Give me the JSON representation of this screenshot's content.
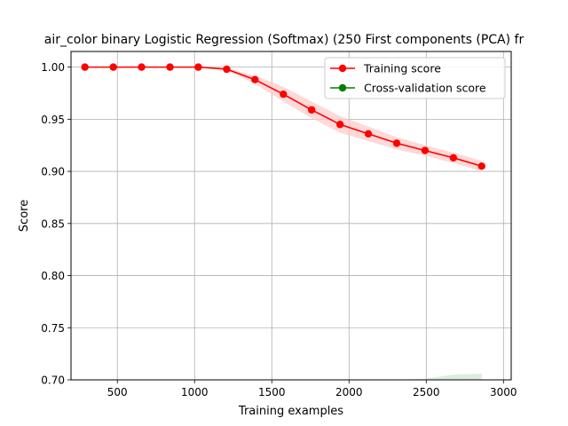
{
  "chart_data": {
    "type": "line",
    "title": "air_color binary Logistic Regression (Softmax) (250 First components (PCA) fr",
    "xlabel": "Training examples",
    "ylabel": "Score",
    "xlim": [
      200,
      3050
    ],
    "ylim": [
      0.7,
      1.015
    ],
    "xticks": [
      500,
      1000,
      1500,
      2000,
      2500,
      3000
    ],
    "xtick_labels": [
      "500",
      "1000",
      "1500",
      "2000",
      "2500",
      "3000"
    ],
    "yticks": [
      0.7,
      0.75,
      0.8,
      0.85,
      0.9,
      0.95,
      1.0
    ],
    "ytick_labels": [
      "0.70",
      "0.75",
      "0.80",
      "0.85",
      "0.90",
      "0.95",
      "1.00"
    ],
    "grid": true,
    "legend_position": "top-right",
    "x": [
      290,
      474,
      657,
      841,
      1024,
      1208,
      1391,
      1575,
      1758,
      1942,
      2125,
      2309,
      2492,
      2676,
      2859
    ],
    "series": [
      {
        "name": "Training score",
        "color": "#ff0000",
        "values": [
          1.0,
          1.0,
          1.0,
          1.0,
          1.0,
          0.998,
          0.988,
          0.974,
          0.959,
          0.945,
          0.936,
          0.927,
          0.92,
          0.913,
          0.905
        ],
        "band_low": [
          1.0,
          1.0,
          1.0,
          1.0,
          1.0,
          0.997,
          0.984,
          0.967,
          0.951,
          0.937,
          0.929,
          0.921,
          0.915,
          0.908,
          0.9
        ],
        "band_high": [
          1.0,
          1.0,
          1.0,
          1.0,
          1.0,
          0.999,
          0.992,
          0.981,
          0.967,
          0.953,
          0.943,
          0.933,
          0.925,
          0.918,
          0.91
        ],
        "band_color": "#ffc8c8"
      },
      {
        "name": "Cross-validation score",
        "color": "#008000",
        "band_x": [
          2125,
          2309,
          2492,
          2676,
          2859
        ],
        "band_low": [
          0.7,
          0.7,
          0.7,
          0.7,
          0.7
        ],
        "band_high": [
          0.7,
          0.7,
          0.701,
          0.705,
          0.706
        ],
        "band_color": "#cce6cc"
      }
    ]
  }
}
